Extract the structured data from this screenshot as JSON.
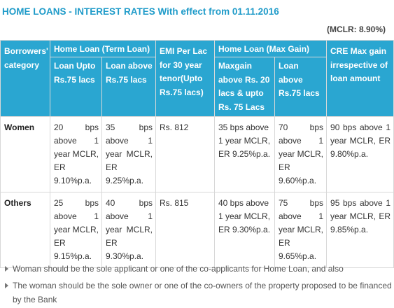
{
  "header": {
    "title": "HOME LOANS - INTEREST RATES With effect from 01.11.2016",
    "mclr": "(MCLR: 8.90%)"
  },
  "table": {
    "col_category": "Borrowers' category",
    "group_term": "Home Loan (Term Loan)",
    "term_upto": "Loan Upto Rs.75 lacs",
    "term_above": "Loan above Rs.75 lacs",
    "emi": "EMI Per Lac for 30 year tenor(Upto Rs.75 lacs)",
    "group_maxgain": "Home Loan (Max Gain)",
    "maxgain_range": "Maxgain above Rs. 20 lacs & upto Rs. 75 Lacs",
    "maxgain_above": "Loan above Rs.75 lacs",
    "cre": "CRE Max gain irrespective of loan amount",
    "rows": [
      {
        "category": "Women",
        "term_upto": "20 bps above 1 year MCLR, ER 9.10%p.a.",
        "term_above": "35 bps above 1 year MCLR, ER 9.25%p.a.",
        "emi": "Rs. 812",
        "maxgain_range": "35 bps above 1 year MCLR, ER 9.25%p.a.",
        "maxgain_above": "70 bps above 1 year MCLR, ER 9.60%p.a.",
        "cre": "90 bps above 1 year MCLR, ER 9.80%p.a."
      },
      {
        "category": "Others",
        "term_upto": "25 bps above 1 year MCLR, ER 9.15%p.a.",
        "term_above": "40 bps above 1 year MCLR, ER 9.30%p.a.",
        "emi": "Rs. 815",
        "maxgain_range": "40 bps above 1 year MCLR, ER 9.30%p.a.",
        "maxgain_above": "75 bps above 1 year MCLR, ER 9.65%p.a.",
        "cre": "95 bps above 1 year MCLR, ER 9.85%p.a."
      }
    ]
  },
  "notes": [
    "Woman should be the sole applicant or one of the co-applicants for Home Loan, and also",
    "The woman should be the sole owner or one of the co-owners of the property proposed to be financed by the Bank"
  ],
  "colors": {
    "title": "#1f9bc9",
    "header_bg": "#2aa6d1",
    "header_text": "#ffffff",
    "border": "#d8d8d8"
  },
  "icons": {
    "note_bullet": "triangle-right-icon"
  }
}
